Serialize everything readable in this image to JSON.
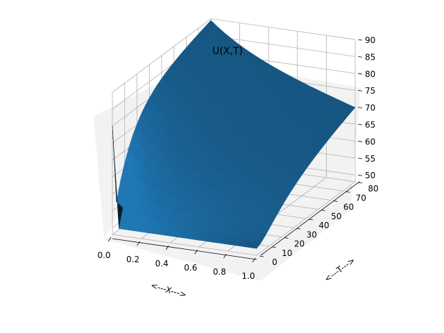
{
  "chart_data": {
    "type": "surface",
    "title": "U(X,T)",
    "xlabel": "<---X--->",
    "tlabel": "<---T--->",
    "zlabel": "",
    "x_ticks": [
      "0.0",
      "0.2",
      "0.4",
      "0.6",
      "0.8",
      "1.0"
    ],
    "t_ticks": [
      "0",
      "10",
      "20",
      "30",
      "40",
      "50",
      "60",
      "70",
      "80"
    ],
    "z_ticks": [
      "50",
      "55",
      "60",
      "65",
      "70",
      "75",
      "80",
      "85",
      "90"
    ],
    "xlim": [
      0,
      1
    ],
    "tlim": [
      0,
      80
    ],
    "zlim": [
      48,
      90
    ],
    "grid": true,
    "surface_color": "#1f77b4",
    "boundary_values": {
      "u_at_t0_interior": 50,
      "u_at_x0": 80,
      "u_at_x1_t0": 50,
      "u_at_x1_tmax": 70,
      "u_peak_x0_tmax": 90
    }
  }
}
